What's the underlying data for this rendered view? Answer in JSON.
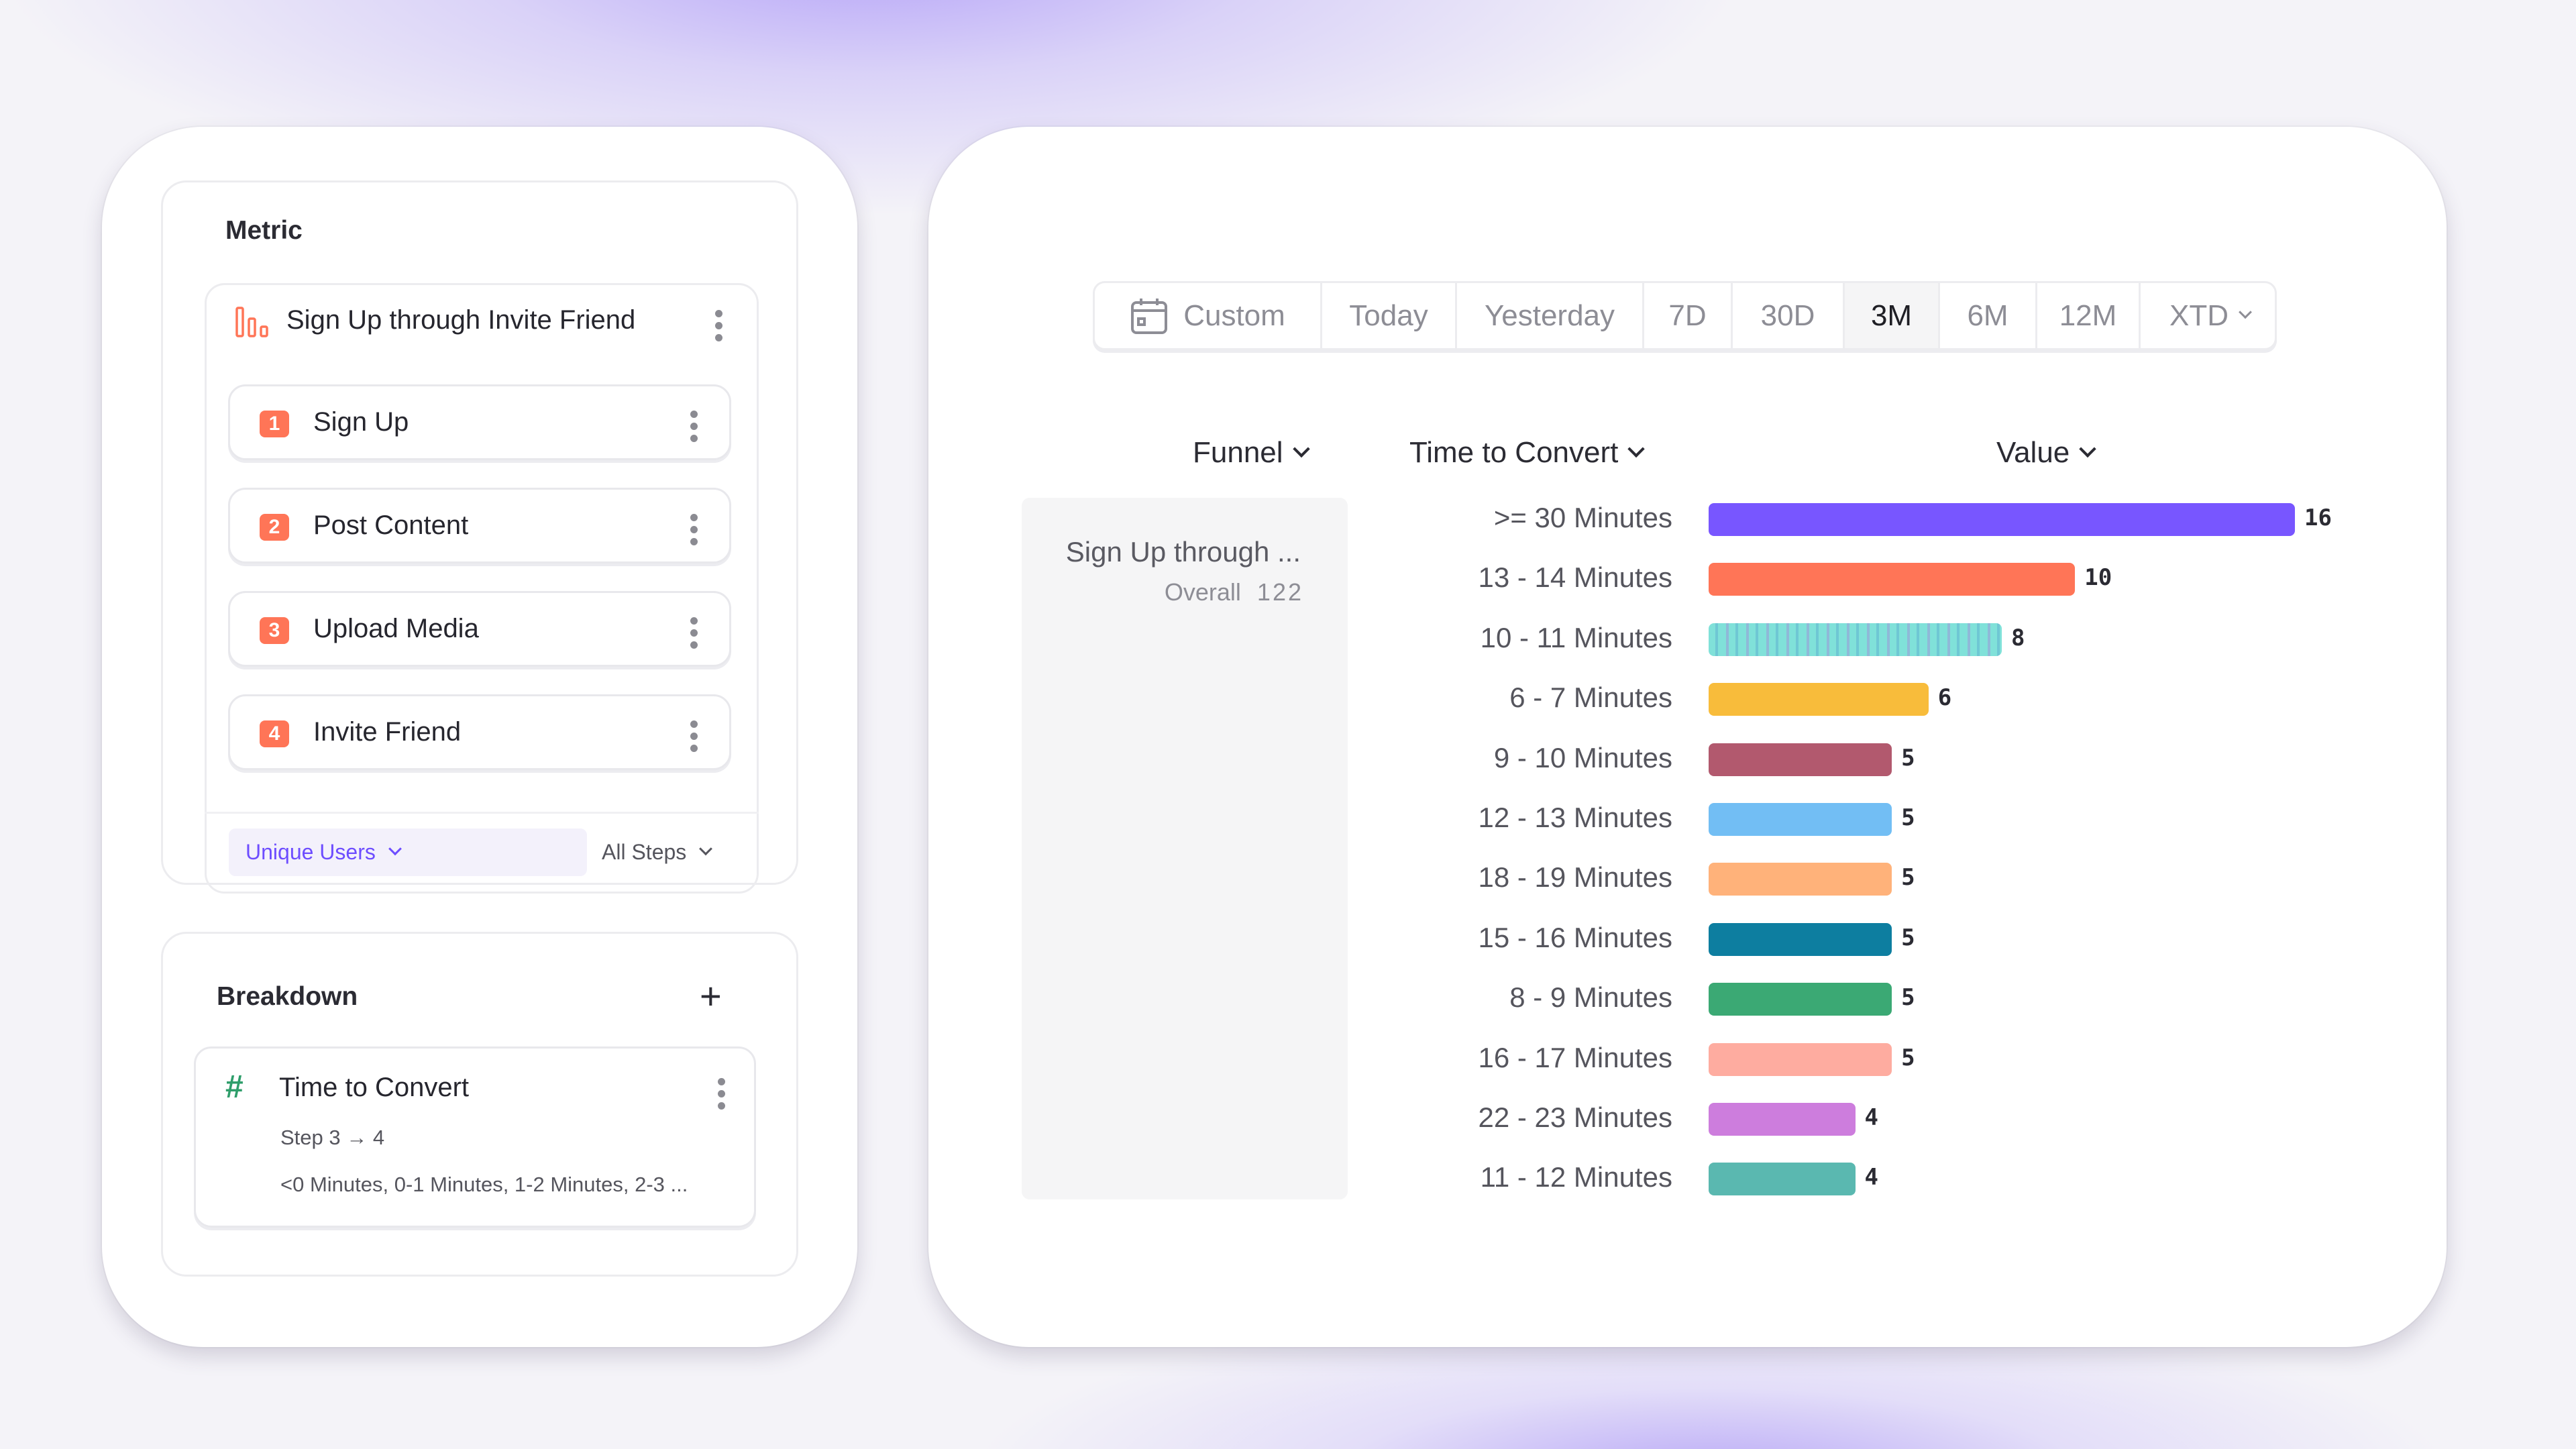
{
  "metric": {
    "title": "Metric",
    "funnel_name": "Sign Up through Invite Friend",
    "steps": [
      {
        "num": "1",
        "label": "Sign Up"
      },
      {
        "num": "2",
        "label": "Post Content"
      },
      {
        "num": "3",
        "label": "Upload Media"
      },
      {
        "num": "4",
        "label": "Invite Friend"
      }
    ],
    "measure": "Unique Users",
    "step_scope": "All Steps"
  },
  "breakdown": {
    "title": "Breakdown",
    "property": "Time to Convert",
    "step": "Step 3 → 4",
    "buckets": "<0 Minutes, 0-1 Minutes, 1-2 Minutes, 2-3 ..."
  },
  "date_range": {
    "options": [
      "Custom",
      "Today",
      "Yesterday",
      "7D",
      "30D",
      "3M",
      "6M",
      "12M",
      "XTD"
    ],
    "selected": "3M"
  },
  "table": {
    "headers": {
      "funnel": "Funnel",
      "time": "Time to Convert",
      "value": "Value"
    },
    "funnel_name": "Sign Up through ...",
    "overall_label": "Overall",
    "overall_value": "122"
  },
  "chart_data": {
    "type": "bar",
    "orientation": "horizontal",
    "categories": [
      ">= 30 Minutes",
      "13 - 14 Minutes",
      "10 - 11 Minutes",
      "6 - 7 Minutes",
      "9 - 10 Minutes",
      "12 - 13 Minutes",
      "18 - 19 Minutes",
      "15 - 16 Minutes",
      "8 - 9 Minutes",
      "16 - 17 Minutes",
      "22 - 23 Minutes",
      "11 - 12 Minutes"
    ],
    "values": [
      16,
      10,
      8,
      6,
      5,
      5,
      5,
      5,
      5,
      5,
      4,
      4
    ],
    "colors": [
      "#7856ff",
      "#ff7557",
      "#80e1d9",
      "#f8bc3b",
      "#b2596e",
      "#72bef4",
      "#ffb27a",
      "#0d7ea0",
      "#3ba974",
      "#feaca0",
      "#cd7ddd",
      "#5ab8b0"
    ]
  },
  "colors": {
    "accent": "#7856ff",
    "step_badge": "#ff7557",
    "hash_icon": "#2f9e6b"
  }
}
